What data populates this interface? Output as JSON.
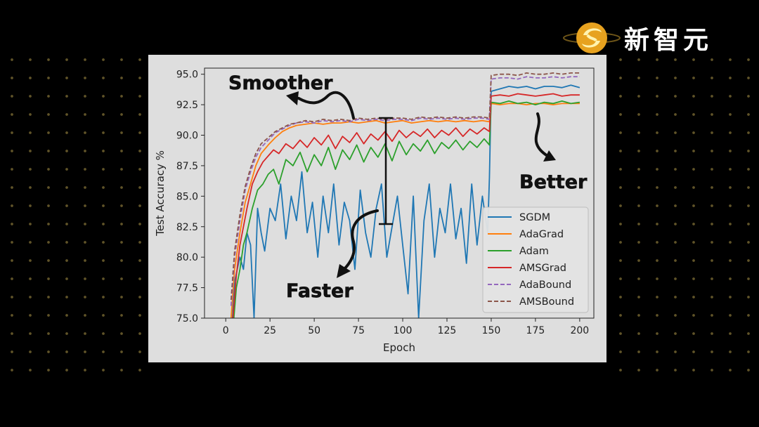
{
  "brand": {
    "name": "新智元",
    "logo_colors": [
      "#f2c12e",
      "#e08a1a"
    ]
  },
  "colors": {
    "background": "#000000",
    "panel": "#dedede",
    "dots": "#6b5d2c"
  },
  "chart_data": {
    "type": "line",
    "xlabel": "Epoch",
    "ylabel": "Test Accuracy %",
    "xlim": [
      -12,
      208
    ],
    "ylim": [
      75.0,
      95.5
    ],
    "xticks": [
      0,
      25,
      50,
      75,
      100,
      125,
      150,
      175,
      200
    ],
    "yticks": [
      "75.0",
      "77.5",
      "80.0",
      "82.5",
      "85.0",
      "87.5",
      "90.0",
      "92.5",
      "95.0"
    ],
    "grid": false,
    "legend_position": "right",
    "series": [
      {
        "name": "SGDM",
        "color": "#1f77b4",
        "dash": "solid",
        "x": [
          3,
          5,
          8,
          10,
          12,
          14,
          16,
          18,
          20,
          22,
          25,
          28,
          31,
          34,
          37,
          40,
          43,
          46,
          49,
          52,
          55,
          58,
          61,
          64,
          67,
          70,
          73,
          76,
          79,
          82,
          85,
          88,
          91,
          94,
          97,
          100,
          103,
          106,
          109,
          112,
          115,
          118,
          121,
          124,
          127,
          130,
          133,
          136,
          139,
          142,
          145,
          148,
          149,
          150,
          155,
          160,
          165,
          170,
          175,
          180,
          185,
          190,
          195,
          200
        ],
        "values": [
          73,
          78,
          80,
          79,
          82,
          81,
          75,
          84,
          82,
          80.5,
          84,
          83,
          86,
          81.5,
          85,
          83,
          87,
          82,
          84.5,
          80,
          85,
          82,
          86,
          81,
          84.5,
          83,
          79,
          85.5,
          82,
          80,
          84,
          86,
          80,
          82.5,
          85,
          81,
          77,
          85,
          75,
          83,
          86,
          80,
          84,
          82,
          86,
          81.5,
          84,
          79.5,
          86,
          81,
          85,
          82,
          86.5,
          93.6,
          93.8,
          94.0,
          93.9,
          94.0,
          93.8,
          94.0,
          94.0,
          93.9,
          94.1,
          93.9
        ]
      },
      {
        "name": "AdaGrad",
        "color": "#ff7f0e",
        "dash": "solid",
        "x": [
          3,
          5,
          8,
          11,
          14,
          17,
          20,
          24,
          28,
          32,
          36,
          40,
          45,
          50,
          55,
          60,
          65,
          70,
          75,
          80,
          85,
          90,
          95,
          100,
          105,
          110,
          115,
          120,
          125,
          130,
          135,
          140,
          145,
          149,
          150,
          155,
          160,
          165,
          170,
          175,
          180,
          185,
          190,
          195,
          200
        ],
        "values": [
          75,
          79,
          82,
          84.5,
          86,
          87.5,
          88.5,
          89.2,
          89.8,
          90.3,
          90.6,
          90.8,
          90.9,
          91.0,
          90.9,
          91.0,
          91.0,
          91.1,
          91.0,
          91.1,
          91.2,
          91.0,
          91.1,
          91.2,
          91.0,
          91.1,
          91.2,
          91.1,
          91.2,
          91.1,
          91.2,
          91.1,
          91.2,
          91.1,
          92.6,
          92.5,
          92.6,
          92.6,
          92.5,
          92.6,
          92.6,
          92.5,
          92.6,
          92.6,
          92.6
        ]
      },
      {
        "name": "Adam",
        "color": "#2ca02c",
        "dash": "solid",
        "x": [
          4,
          6,
          8,
          10,
          12,
          15,
          18,
          21,
          24,
          27,
          30,
          34,
          38,
          42,
          46,
          50,
          54,
          58,
          62,
          66,
          70,
          74,
          78,
          82,
          86,
          90,
          94,
          98,
          102,
          106,
          110,
          114,
          118,
          122,
          126,
          130,
          134,
          138,
          142,
          146,
          149,
          150,
          155,
          160,
          165,
          170,
          175,
          180,
          185,
          190,
          195,
          200
        ],
        "values": [
          74,
          77.5,
          79,
          81,
          82,
          84,
          85.5,
          86,
          86.8,
          87.2,
          86,
          88,
          87.5,
          88.6,
          87,
          88.4,
          87.5,
          89.0,
          87.2,
          88.8,
          88.0,
          89.2,
          87.8,
          89.0,
          88.2,
          89.3,
          87.9,
          89.5,
          88.4,
          89.3,
          88.7,
          89.6,
          88.5,
          89.4,
          88.9,
          89.6,
          88.8,
          89.5,
          89.0,
          89.7,
          89.2,
          92.7,
          92.6,
          92.8,
          92.6,
          92.7,
          92.5,
          92.7,
          92.6,
          92.8,
          92.6,
          92.7
        ]
      },
      {
        "name": "AMSGrad",
        "color": "#d62728",
        "dash": "solid",
        "x": [
          4,
          6,
          8,
          10,
          12,
          15,
          18,
          21,
          24,
          27,
          30,
          34,
          38,
          42,
          46,
          50,
          54,
          58,
          62,
          66,
          70,
          74,
          78,
          82,
          86,
          90,
          94,
          98,
          102,
          106,
          110,
          114,
          118,
          122,
          126,
          130,
          134,
          138,
          142,
          146,
          149,
          150,
          155,
          160,
          165,
          170,
          175,
          180,
          185,
          190,
          195,
          200
        ],
        "values": [
          75,
          78.5,
          81,
          82.5,
          84,
          86,
          87,
          87.8,
          88.3,
          88.8,
          88.5,
          89.3,
          88.9,
          89.6,
          89.0,
          89.8,
          89.2,
          90.0,
          88.9,
          89.9,
          89.4,
          90.2,
          89.3,
          90.1,
          89.6,
          90.3,
          89.5,
          90.4,
          89.8,
          90.3,
          89.9,
          90.5,
          89.8,
          90.4,
          90.0,
          90.6,
          89.9,
          90.5,
          90.1,
          90.6,
          90.3,
          93.2,
          93.3,
          93.2,
          93.4,
          93.3,
          93.2,
          93.3,
          93.4,
          93.2,
          93.3,
          93.3
        ]
      },
      {
        "name": "AdaBound",
        "color": "#9467bd",
        "dash": "dashed",
        "x": [
          3,
          5,
          8,
          11,
          14,
          17,
          20,
          24,
          28,
          32,
          36,
          40,
          45,
          50,
          55,
          60,
          65,
          70,
          75,
          80,
          85,
          90,
          95,
          100,
          105,
          110,
          115,
          120,
          125,
          130,
          135,
          140,
          145,
          149,
          150,
          155,
          160,
          165,
          170,
          175,
          180,
          185,
          190,
          195,
          200
        ],
        "values": [
          76,
          80,
          83,
          85.5,
          87,
          88.2,
          89.0,
          89.6,
          90.2,
          90.5,
          90.8,
          91.0,
          91.1,
          91.0,
          91.2,
          91.1,
          91.2,
          91.1,
          91.3,
          91.2,
          91.3,
          91.2,
          91.3,
          91.3,
          91.2,
          91.4,
          91.3,
          91.4,
          91.3,
          91.4,
          91.3,
          91.4,
          91.4,
          91.3,
          94.6,
          94.7,
          94.7,
          94.6,
          94.8,
          94.7,
          94.7,
          94.8,
          94.7,
          94.8,
          94.8
        ]
      },
      {
        "name": "AMSBound",
        "color": "#8c564b",
        "dash": "dashed",
        "x": [
          3,
          5,
          8,
          11,
          14,
          17,
          20,
          24,
          28,
          32,
          36,
          40,
          45,
          50,
          55,
          60,
          65,
          70,
          75,
          80,
          85,
          90,
          95,
          100,
          105,
          110,
          115,
          120,
          125,
          130,
          135,
          140,
          145,
          149,
          150,
          155,
          160,
          165,
          170,
          175,
          180,
          185,
          190,
          195,
          200
        ],
        "values": [
          76.5,
          80.5,
          83.5,
          85.8,
          87.3,
          88.5,
          89.3,
          89.8,
          90.3,
          90.6,
          90.9,
          91.0,
          91.2,
          91.1,
          91.3,
          91.2,
          91.3,
          91.2,
          91.4,
          91.3,
          91.4,
          91.3,
          91.4,
          91.4,
          91.3,
          91.5,
          91.4,
          91.5,
          91.4,
          91.5,
          91.4,
          91.5,
          91.5,
          91.4,
          94.9,
          95.0,
          95.0,
          94.9,
          95.1,
          95.0,
          95.0,
          95.1,
          95.0,
          95.1,
          95.1
        ]
      }
    ],
    "annotations": {
      "smoother": "Smoother",
      "faster": "Faster",
      "better": "Better"
    }
  }
}
